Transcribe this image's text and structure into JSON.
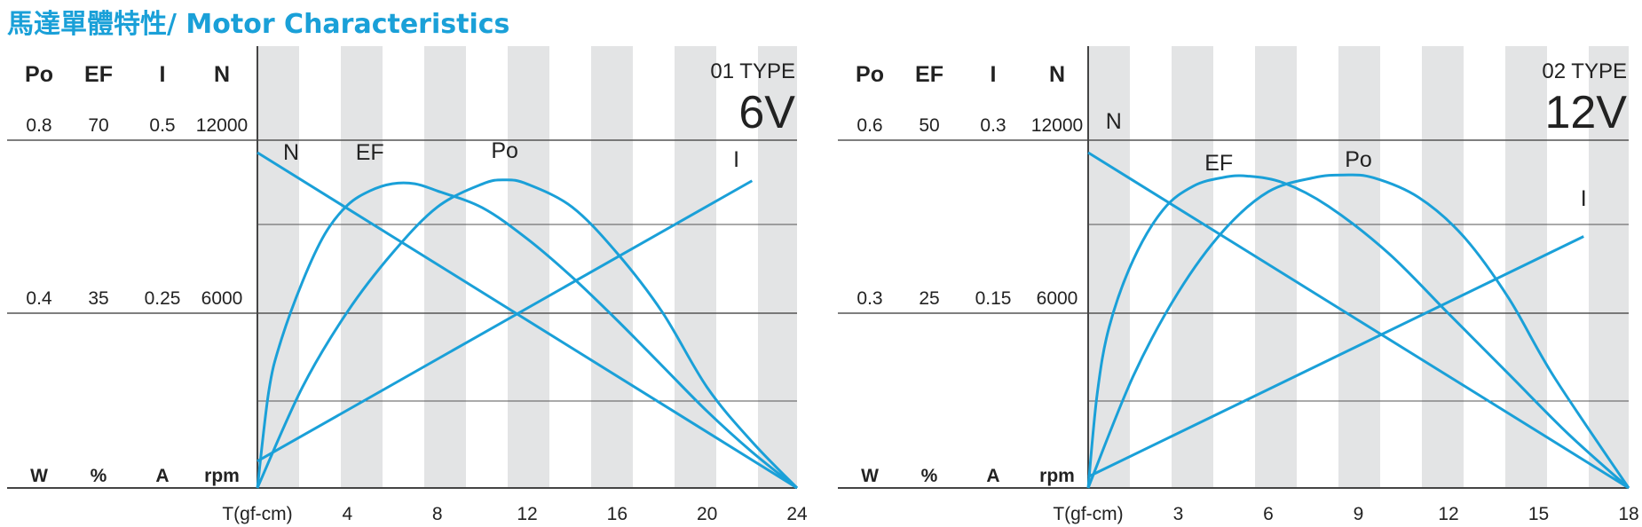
{
  "page_title": "馬達單體特性/ Motor Characteristics",
  "colors": {
    "accent": "#1aa0d8",
    "stripe": "#e3e4e5",
    "gridline": "#555555",
    "text": "#222222"
  },
  "chart_data": [
    {
      "type": "line",
      "type_label": "01 TYPE",
      "voltage_label": "6V",
      "param_headers": [
        "Po",
        "EF",
        "I",
        "N"
      ],
      "param_top_values": [
        "0.8",
        "70",
        "0.5",
        "12000"
      ],
      "param_mid_values": [
        "0.4",
        "35",
        "0.25",
        "6000"
      ],
      "units": [
        "W",
        "%",
        "A",
        "rpm"
      ],
      "xlabel": "T(gf-cm)",
      "x_ticks": [
        4,
        8,
        12,
        16,
        20,
        24
      ],
      "xlim": [
        0,
        24
      ],
      "y_max": {
        "Po": 0.8,
        "EF": 70,
        "I": 0.5,
        "N": 12000
      },
      "series": [
        {
          "name": "N",
          "x": [
            0,
            24
          ],
          "y": [
            12000,
            0
          ]
        },
        {
          "name": "EF",
          "x": [
            0,
            0.5,
            1,
            2,
            3,
            4,
            5,
            6,
            7,
            8,
            10,
            12,
            14,
            16,
            18,
            20,
            22,
            24
          ],
          "y": [
            0,
            20,
            30,
            43,
            53,
            59,
            62,
            63.5,
            63.5,
            62,
            58.5,
            52,
            44,
            35,
            25.5,
            16,
            7.5,
            0
          ]
        },
        {
          "name": "Po",
          "x": [
            0,
            2,
            4,
            6,
            8,
            10,
            11,
            12,
            14,
            16,
            18,
            20,
            22,
            24
          ],
          "y": [
            0,
            0.24,
            0.42,
            0.56,
            0.67,
            0.725,
            0.735,
            0.725,
            0.67,
            0.56,
            0.42,
            0.24,
            0.11,
            0
          ]
        },
        {
          "name": "I",
          "x": [
            0,
            22
          ],
          "y": [
            0.04,
            0.458
          ]
        }
      ]
    },
    {
      "type": "line",
      "type_label": "02 TYPE",
      "voltage_label": "12V",
      "param_headers": [
        "Po",
        "EF",
        "I",
        "N"
      ],
      "param_top_values": [
        "0.6",
        "50",
        "0.3",
        "12000"
      ],
      "param_mid_values": [
        "0.3",
        "25",
        "0.15",
        "6000"
      ],
      "units": [
        "W",
        "%",
        "A",
        "rpm"
      ],
      "xlabel": "T(gf-cm)",
      "x_ticks": [
        3,
        6,
        9,
        12,
        15,
        18
      ],
      "xlim": [
        0,
        18
      ],
      "y_max": {
        "Po": 0.6,
        "EF": 50,
        "I": 0.3,
        "N": 12000
      },
      "series": [
        {
          "name": "N",
          "x": [
            0,
            18
          ],
          "y": [
            12000,
            0
          ]
        },
        {
          "name": "EF",
          "x": [
            0,
            0.3,
            0.7,
            1.5,
            2.5,
            3.5,
            4.5,
            5.3,
            6.5,
            8,
            10,
            12,
            14,
            16,
            18
          ],
          "y": [
            0,
            14,
            24,
            34,
            41.5,
            45,
            46.3,
            46.5,
            45.5,
            42,
            35,
            26,
            17,
            8,
            0
          ]
        },
        {
          "name": "Po",
          "x": [
            0,
            1.5,
            3,
            4.5,
            6,
            7.5,
            8.5,
            9.5,
            11,
            12.5,
            14,
            15.5,
            18
          ],
          "y": [
            0,
            0.2,
            0.35,
            0.46,
            0.53,
            0.555,
            0.56,
            0.555,
            0.52,
            0.45,
            0.34,
            0.2,
            0
          ]
        },
        {
          "name": "I",
          "x": [
            0,
            16.5
          ],
          "y": [
            0.01,
            0.225
          ]
        }
      ]
    }
  ]
}
